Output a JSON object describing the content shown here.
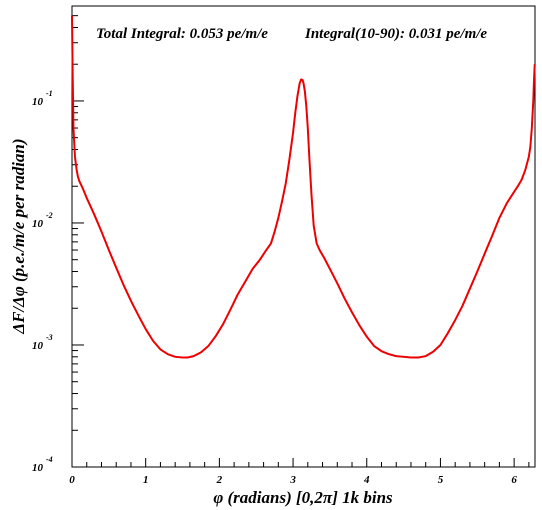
{
  "chart_data": {
    "type": "line",
    "annotations": {
      "total": "Total Integral: 0.053 pe/m/e",
      "partial": "Integral(10-90): 0.031 pe/m/e"
    },
    "xlabel": "φ (radians) [0,2π] 1k bins",
    "ylabel": "ΔF/Δφ (p.e./m/e per radian)",
    "xlim": [
      0,
      6.2832
    ],
    "ylim": [
      0.0001,
      0.6
    ],
    "yscale": "log",
    "x_ticks": [
      {
        "value": 0,
        "label": "0"
      },
      {
        "value": 1,
        "label": "1"
      },
      {
        "value": 2,
        "label": "2"
      },
      {
        "value": 3,
        "label": "3"
      },
      {
        "value": 4,
        "label": "4"
      },
      {
        "value": 5,
        "label": "5"
      },
      {
        "value": 6,
        "label": "6"
      }
    ],
    "y_ticks": [
      {
        "value": 0.0001,
        "base": "10",
        "exp": "-4"
      },
      {
        "value": 0.001,
        "base": "10",
        "exp": "-3"
      },
      {
        "value": 0.01,
        "base": "10",
        "exp": "-2"
      },
      {
        "value": 0.1,
        "base": "10",
        "exp": "-1"
      }
    ],
    "series": [
      {
        "color": "#ee0000",
        "x": [
          0.0,
          0.01,
          0.02,
          0.04,
          0.06,
          0.08,
          0.1,
          0.15,
          0.2,
          0.3,
          0.4,
          0.5,
          0.6,
          0.7,
          0.8,
          0.9,
          1.0,
          1.1,
          1.2,
          1.3,
          1.4,
          1.5,
          1.57,
          1.65,
          1.75,
          1.85,
          1.95,
          2.05,
          2.15,
          2.25,
          2.35,
          2.45,
          2.55,
          2.62,
          2.7,
          2.75,
          2.8,
          2.85,
          2.9,
          2.95,
          3.0,
          3.03,
          3.06,
          3.09,
          3.11,
          3.13,
          3.1416,
          3.16,
          3.18,
          3.2,
          3.22,
          3.25,
          3.28,
          3.32,
          3.36,
          3.42,
          3.5,
          3.6,
          3.7,
          3.8,
          3.9,
          4.0,
          4.1,
          4.2,
          4.3,
          4.4,
          4.5,
          4.6,
          4.7,
          4.75,
          4.8,
          4.9,
          5.0,
          5.1,
          5.2,
          5.3,
          5.4,
          5.5,
          5.6,
          5.7,
          5.8,
          5.9,
          6.0,
          6.05,
          6.1,
          6.15,
          6.2,
          6.22,
          6.24,
          6.26,
          6.27,
          6.28
        ],
        "y": [
          0.5,
          0.15,
          0.06,
          0.035,
          0.028,
          0.024,
          0.022,
          0.019,
          0.016,
          0.0118,
          0.0085,
          0.006,
          0.0043,
          0.0031,
          0.0023,
          0.00175,
          0.00135,
          0.00108,
          0.00092,
          0.00084,
          0.0008,
          0.00079,
          0.00079,
          0.00081,
          0.00087,
          0.00098,
          0.00118,
          0.00148,
          0.00195,
          0.0026,
          0.0033,
          0.0042,
          0.005,
          0.0058,
          0.0068,
          0.0085,
          0.011,
          0.015,
          0.021,
          0.033,
          0.055,
          0.08,
          0.11,
          0.14,
          0.15,
          0.148,
          0.14,
          0.12,
          0.09,
          0.06,
          0.035,
          0.017,
          0.0095,
          0.0068,
          0.006,
          0.0052,
          0.0042,
          0.0032,
          0.0024,
          0.00185,
          0.00145,
          0.00117,
          0.00098,
          0.00089,
          0.00084,
          0.00081,
          0.0008,
          0.00079,
          0.00079,
          0.0008,
          0.00081,
          0.00088,
          0.001,
          0.00125,
          0.0016,
          0.0021,
          0.0029,
          0.004,
          0.0056,
          0.0078,
          0.011,
          0.0145,
          0.018,
          0.02,
          0.0225,
          0.027,
          0.035,
          0.042,
          0.06,
          0.1,
          0.15,
          0.2
        ]
      }
    ]
  }
}
